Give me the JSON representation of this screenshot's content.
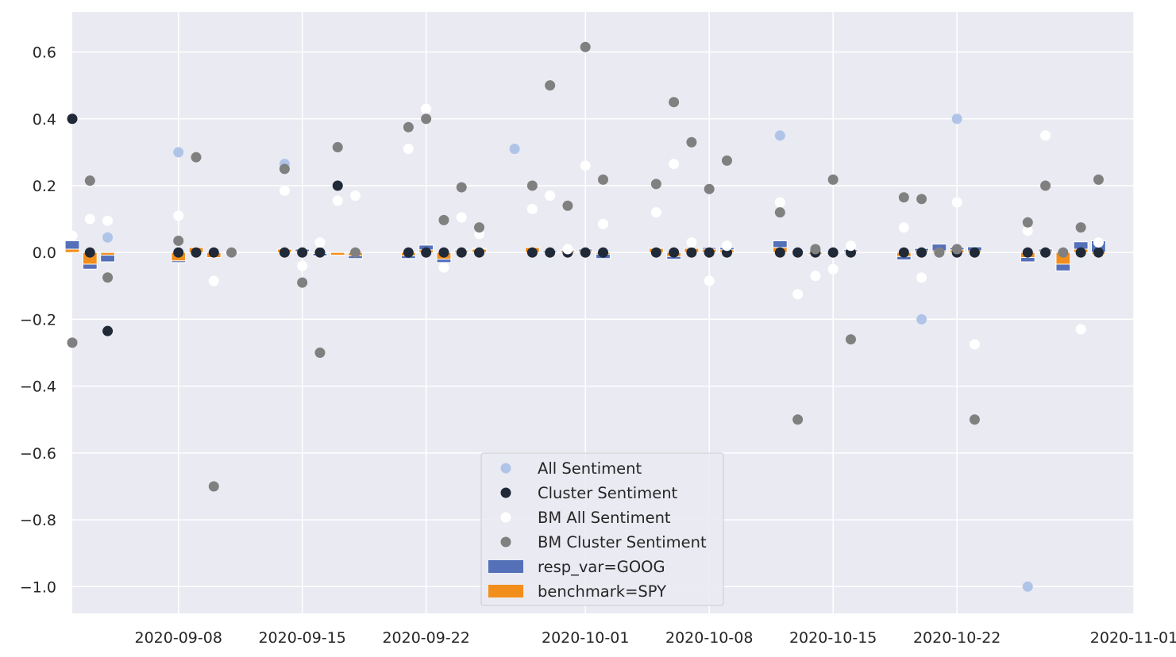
{
  "chart_data": {
    "type": "scatter",
    "x_type": "date",
    "xlim": [
      "2020-09-02",
      "2020-11-01"
    ],
    "ylim": [
      -1.08,
      0.72
    ],
    "x_ticks": [
      "2020-09-08",
      "2020-09-15",
      "2020-09-22",
      "2020-10-01",
      "2020-10-08",
      "2020-10-15",
      "2020-10-22",
      "2020-11-01"
    ],
    "y_ticks": [
      {
        "value": 0.6,
        "label": "0.6"
      },
      {
        "value": 0.4,
        "label": "0.4"
      },
      {
        "value": 0.2,
        "label": "0.2"
      },
      {
        "value": 0.0,
        "label": "0.0"
      },
      {
        "value": -0.2,
        "label": "−0.2"
      },
      {
        "value": -0.4,
        "label": "−0.4"
      },
      {
        "value": -0.6,
        "label": "−0.6"
      },
      {
        "value": -0.8,
        "label": "−0.8"
      },
      {
        "value": -1.0,
        "label": "−1.0"
      }
    ],
    "grid": true,
    "legend_position": "lower-center",
    "series": [
      {
        "name": "All Sentiment",
        "kind": "point",
        "color": "#b0c4e8",
        "points": [
          [
            "2020-09-04",
            0.045
          ],
          [
            "2020-09-08",
            0.3
          ],
          [
            "2020-09-14",
            0.265
          ],
          [
            "2020-09-27",
            0.31
          ],
          [
            "2020-10-12",
            0.35
          ],
          [
            "2020-10-20",
            -0.2
          ],
          [
            "2020-10-21",
            0.0
          ],
          [
            "2020-10-22",
            0.4
          ],
          [
            "2020-10-26",
            -1.0
          ],
          [
            "2020-10-27",
            0.0
          ]
        ]
      },
      {
        "name": "Cluster Sentiment",
        "kind": "point",
        "color": "#1f2937",
        "points": [
          [
            "2020-09-02",
            0.4
          ],
          [
            "2020-09-03",
            0.0
          ],
          [
            "2020-09-04",
            -0.235
          ],
          [
            "2020-09-08",
            0.0
          ],
          [
            "2020-09-09",
            0.0
          ],
          [
            "2020-09-10",
            0.0
          ],
          [
            "2020-09-14",
            0.0
          ],
          [
            "2020-09-15",
            0.0
          ],
          [
            "2020-09-16",
            0.0
          ],
          [
            "2020-09-17",
            0.2
          ],
          [
            "2020-09-21",
            0.0
          ],
          [
            "2020-09-22",
            0.0
          ],
          [
            "2020-09-23",
            0.0
          ],
          [
            "2020-09-24",
            0.0
          ],
          [
            "2020-09-25",
            0.0
          ],
          [
            "2020-09-28",
            0.0
          ],
          [
            "2020-09-29",
            0.0
          ],
          [
            "2020-09-30",
            0.0
          ],
          [
            "2020-10-01",
            0.0
          ],
          [
            "2020-10-02",
            0.0
          ],
          [
            "2020-10-05",
            0.0
          ],
          [
            "2020-10-06",
            0.0
          ],
          [
            "2020-10-07",
            0.0
          ],
          [
            "2020-10-08",
            0.0
          ],
          [
            "2020-10-09",
            0.0
          ],
          [
            "2020-10-12",
            0.0
          ],
          [
            "2020-10-13",
            0.0
          ],
          [
            "2020-10-14",
            0.0
          ],
          [
            "2020-10-15",
            0.0
          ],
          [
            "2020-10-16",
            0.0
          ],
          [
            "2020-10-19",
            0.0
          ],
          [
            "2020-10-20",
            0.0
          ],
          [
            "2020-10-22",
            0.0
          ],
          [
            "2020-10-23",
            0.0
          ],
          [
            "2020-10-26",
            0.0
          ],
          [
            "2020-10-27",
            0.0
          ],
          [
            "2020-10-29",
            0.0
          ],
          [
            "2020-10-30",
            0.0
          ]
        ]
      },
      {
        "name": "BM All Sentiment",
        "kind": "point",
        "color": "#ffffff",
        "points": [
          [
            "2020-09-02",
            0.05
          ],
          [
            "2020-09-03",
            0.1
          ],
          [
            "2020-09-04",
            0.095
          ],
          [
            "2020-09-08",
            0.11
          ],
          [
            "2020-09-10",
            -0.085
          ],
          [
            "2020-09-11",
            0.0
          ],
          [
            "2020-09-14",
            0.185
          ],
          [
            "2020-09-15",
            -0.04
          ],
          [
            "2020-09-16",
            0.03
          ],
          [
            "2020-09-17",
            0.155
          ],
          [
            "2020-09-18",
            0.17
          ],
          [
            "2020-09-21",
            0.31
          ],
          [
            "2020-09-22",
            0.43
          ],
          [
            "2020-09-23",
            -0.045
          ],
          [
            "2020-09-24",
            0.105
          ],
          [
            "2020-09-25",
            0.055
          ],
          [
            "2020-09-28",
            0.13
          ],
          [
            "2020-09-29",
            0.17
          ],
          [
            "2020-09-30",
            0.01
          ],
          [
            "2020-10-01",
            0.26
          ],
          [
            "2020-10-02",
            0.085
          ],
          [
            "2020-10-05",
            0.12
          ],
          [
            "2020-10-06",
            0.265
          ],
          [
            "2020-10-07",
            0.03
          ],
          [
            "2020-10-08",
            -0.085
          ],
          [
            "2020-10-09",
            0.02
          ],
          [
            "2020-10-12",
            0.15
          ],
          [
            "2020-10-13",
            -0.125
          ],
          [
            "2020-10-14",
            -0.07
          ],
          [
            "2020-10-15",
            -0.05
          ],
          [
            "2020-10-16",
            0.02
          ],
          [
            "2020-10-19",
            0.075
          ],
          [
            "2020-10-20",
            -0.075
          ],
          [
            "2020-10-22",
            0.15
          ],
          [
            "2020-10-23",
            -0.275
          ],
          [
            "2020-10-26",
            0.065
          ],
          [
            "2020-10-27",
            0.35
          ],
          [
            "2020-10-29",
            -0.23
          ],
          [
            "2020-10-30",
            0.03
          ]
        ]
      },
      {
        "name": "BM Cluster Sentiment",
        "kind": "point",
        "color": "#808080",
        "points": [
          [
            "2020-09-02",
            -0.27
          ],
          [
            "2020-09-03",
            0.215
          ],
          [
            "2020-09-04",
            -0.075
          ],
          [
            "2020-09-08",
            0.035
          ],
          [
            "2020-09-09",
            0.285
          ],
          [
            "2020-09-10",
            -0.7
          ],
          [
            "2020-09-11",
            0.0
          ],
          [
            "2020-09-14",
            0.25
          ],
          [
            "2020-09-15",
            -0.09
          ],
          [
            "2020-09-16",
            -0.3
          ],
          [
            "2020-09-17",
            0.315
          ],
          [
            "2020-09-18",
            0.0
          ],
          [
            "2020-09-21",
            0.375
          ],
          [
            "2020-09-22",
            0.4
          ],
          [
            "2020-09-23",
            0.097
          ],
          [
            "2020-09-24",
            0.195
          ],
          [
            "2020-09-25",
            0.075
          ],
          [
            "2020-09-28",
            0.2
          ],
          [
            "2020-09-29",
            0.5
          ],
          [
            "2020-09-30",
            0.14
          ],
          [
            "2020-10-01",
            0.615
          ],
          [
            "2020-10-02",
            0.218
          ],
          [
            "2020-10-05",
            0.205
          ],
          [
            "2020-10-06",
            0.45
          ],
          [
            "2020-10-07",
            0.33
          ],
          [
            "2020-10-08",
            0.19
          ],
          [
            "2020-10-09",
            0.275
          ],
          [
            "2020-10-12",
            0.12
          ],
          [
            "2020-10-13",
            -0.5
          ],
          [
            "2020-10-14",
            0.01
          ],
          [
            "2020-10-15",
            0.218
          ],
          [
            "2020-10-16",
            -0.26
          ],
          [
            "2020-10-19",
            0.165
          ],
          [
            "2020-10-20",
            0.16
          ],
          [
            "2020-10-21",
            0.0
          ],
          [
            "2020-10-22",
            0.01
          ],
          [
            "2020-10-23",
            -0.5
          ],
          [
            "2020-10-26",
            0.09
          ],
          [
            "2020-10-27",
            0.2
          ],
          [
            "2020-10-28",
            0.0
          ],
          [
            "2020-10-29",
            0.075
          ],
          [
            "2020-10-30",
            0.218
          ]
        ]
      },
      {
        "name": "resp_var=GOOG",
        "kind": "bar",
        "color": "#5470b9",
        "points": [
          [
            "2020-09-02",
            0.035
          ],
          [
            "2020-09-03",
            -0.05
          ],
          [
            "2020-09-04",
            -0.028
          ],
          [
            "2020-09-08",
            -0.03
          ],
          [
            "2020-09-09",
            0.008
          ],
          [
            "2020-09-10",
            -0.01
          ],
          [
            "2020-09-11",
            0.003
          ],
          [
            "2020-09-14",
            0.007
          ],
          [
            "2020-09-15",
            0.01
          ],
          [
            "2020-09-16",
            -0.01
          ],
          [
            "2020-09-17",
            -0.008
          ],
          [
            "2020-09-18",
            -0.018
          ],
          [
            "2020-09-21",
            -0.018
          ],
          [
            "2020-09-22",
            0.022
          ],
          [
            "2020-09-23",
            -0.03
          ],
          [
            "2020-09-24",
            0.008
          ],
          [
            "2020-09-25",
            0.012
          ],
          [
            "2020-09-28",
            0.008
          ],
          [
            "2020-09-29",
            0.005
          ],
          [
            "2020-09-30",
            0.008
          ],
          [
            "2020-10-01",
            0.01
          ],
          [
            "2020-10-02",
            -0.018
          ],
          [
            "2020-10-05",
            0.015
          ],
          [
            "2020-10-06",
            -0.02
          ],
          [
            "2020-10-07",
            0.015
          ],
          [
            "2020-10-08",
            0.015
          ],
          [
            "2020-10-09",
            0.015
          ],
          [
            "2020-10-12",
            0.035
          ],
          [
            "2020-10-13",
            0.006
          ],
          [
            "2020-10-14",
            -0.008
          ],
          [
            "2020-10-15",
            -0.005
          ],
          [
            "2020-10-16",
            0.008
          ],
          [
            "2020-10-19",
            -0.022
          ],
          [
            "2020-10-20",
            0.012
          ],
          [
            "2020-10-21",
            0.025
          ],
          [
            "2020-10-22",
            0.015
          ],
          [
            "2020-10-23",
            0.017
          ],
          [
            "2020-10-26",
            -0.028
          ],
          [
            "2020-10-27",
            0.01
          ],
          [
            "2020-10-28",
            -0.055
          ],
          [
            "2020-10-29",
            0.032
          ],
          [
            "2020-10-30",
            0.035
          ]
        ]
      },
      {
        "name": "benchmark=SPY",
        "kind": "bar",
        "color": "#f28e1c",
        "points": [
          [
            "2020-09-02",
            0.01
          ],
          [
            "2020-09-03",
            -0.035
          ],
          [
            "2020-09-04",
            -0.008
          ],
          [
            "2020-09-08",
            -0.025
          ],
          [
            "2020-09-09",
            0.015
          ],
          [
            "2020-09-10",
            -0.015
          ],
          [
            "2020-09-11",
            0.0
          ],
          [
            "2020-09-14",
            0.01
          ],
          [
            "2020-09-15",
            0.003
          ],
          [
            "2020-09-16",
            -0.003
          ],
          [
            "2020-09-17",
            -0.008
          ],
          [
            "2020-09-18",
            -0.01
          ],
          [
            "2020-09-21",
            -0.01
          ],
          [
            "2020-09-22",
            0.008
          ],
          [
            "2020-09-23",
            -0.02
          ],
          [
            "2020-09-24",
            0.005
          ],
          [
            "2020-09-25",
            0.01
          ],
          [
            "2020-09-28",
            0.015
          ],
          [
            "2020-09-29",
            0.0
          ],
          [
            "2020-09-30",
            0.005
          ],
          [
            "2020-10-01",
            0.005
          ],
          [
            "2020-10-02",
            -0.005
          ],
          [
            "2020-10-05",
            0.012
          ],
          [
            "2020-10-06",
            -0.012
          ],
          [
            "2020-10-07",
            0.012
          ],
          [
            "2020-10-08",
            0.01
          ],
          [
            "2020-10-09",
            0.008
          ],
          [
            "2020-10-12",
            0.015
          ],
          [
            "2020-10-13",
            0.003
          ],
          [
            "2020-10-14",
            -0.005
          ],
          [
            "2020-10-15",
            0.0
          ],
          [
            "2020-10-16",
            0.003
          ],
          [
            "2020-10-19",
            -0.012
          ],
          [
            "2020-10-20",
            0.005
          ],
          [
            "2020-10-21",
            0.005
          ],
          [
            "2020-10-22",
            0.008
          ],
          [
            "2020-10-23",
            0.005
          ],
          [
            "2020-10-26",
            -0.015
          ],
          [
            "2020-10-27",
            0.005
          ],
          [
            "2020-10-28",
            -0.035
          ],
          [
            "2020-10-29",
            0.01
          ],
          [
            "2020-10-30",
            -0.005
          ]
        ]
      }
    ]
  }
}
